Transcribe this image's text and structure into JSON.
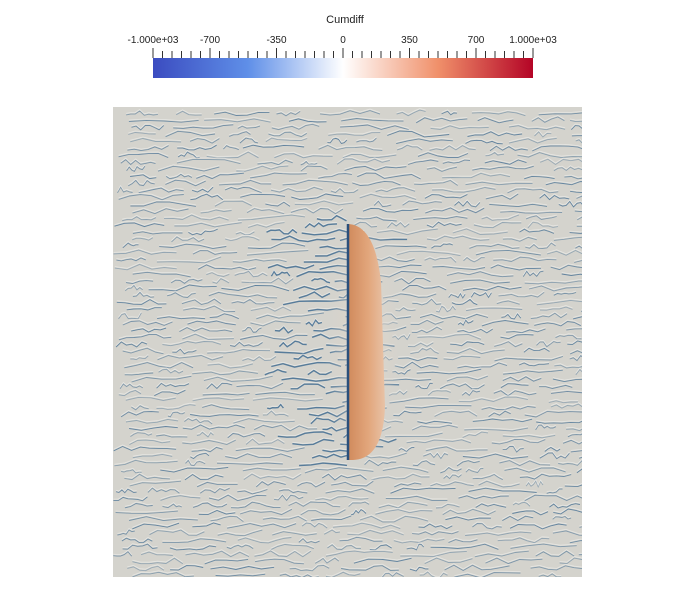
{
  "legend": {
    "title": "Cumdiff",
    "tick_labels": [
      {
        "text": "-1.000e+03",
        "value": -1000
      },
      {
        "text": "-700",
        "value": -700
      },
      {
        "text": "-350",
        "value": -350
      },
      {
        "text": "0",
        "value": 0
      },
      {
        "text": "350",
        "value": 350
      },
      {
        "text": "700",
        "value": 700
      },
      {
        "text": "1.000e+03",
        "value": 1000
      }
    ],
    "range": [
      -1000,
      1000
    ],
    "colormap": "cool-to-warm",
    "colors": {
      "min": "#3b4cc0",
      "low": "#5f8fe8",
      "mid": "#ffffff",
      "high": "#f0906a",
      "max": "#b40426"
    }
  },
  "plot": {
    "background": "#d4d3cd",
    "streak_color": "#2e5f8a",
    "feature_color": "#e2a67c"
  }
}
